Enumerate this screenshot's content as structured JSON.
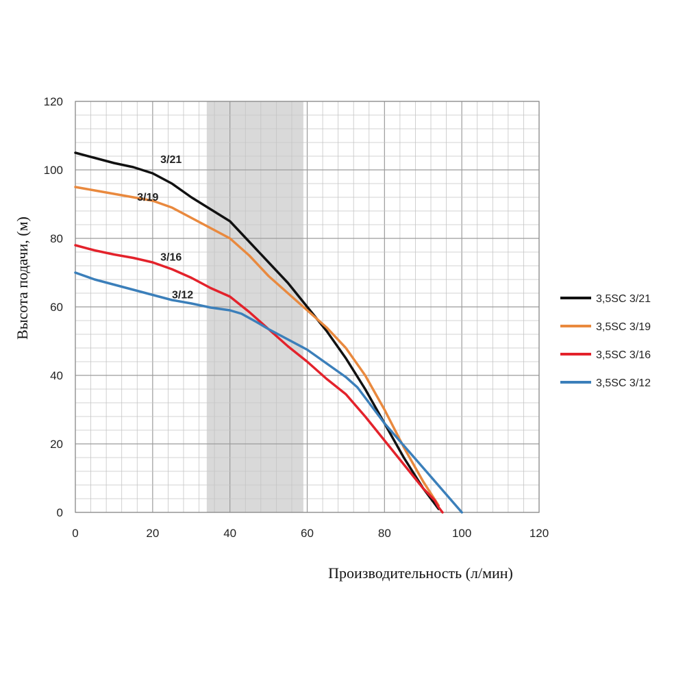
{
  "chart_data": {
    "type": "line",
    "xlabel": "Производительность (л/мин)",
    "ylabel": "Высота подачи, (м)",
    "xlim": [
      0,
      120
    ],
    "ylim": [
      0,
      120
    ],
    "x_ticks": [
      0,
      20,
      40,
      60,
      80,
      100,
      120
    ],
    "y_ticks": [
      0,
      20,
      40,
      60,
      80,
      100,
      120
    ],
    "grid": true,
    "legend_position": "right",
    "highlight_band": {
      "x_from": 34,
      "x_to": 59,
      "color": "#d9d9d9"
    },
    "series": [
      {
        "name": "3,5SC 3/21",
        "curve_label": "3/21",
        "label_at": [
          22,
          102
        ],
        "color": "#111111",
        "points": [
          [
            0,
            105
          ],
          [
            5,
            103.5
          ],
          [
            10,
            102
          ],
          [
            15,
            100.8
          ],
          [
            20,
            99
          ],
          [
            25,
            96
          ],
          [
            30,
            92
          ],
          [
            35,
            88.5
          ],
          [
            40,
            85
          ],
          [
            45,
            79
          ],
          [
            50,
            73
          ],
          [
            55,
            67
          ],
          [
            60,
            60
          ],
          [
            65,
            53
          ],
          [
            70,
            45
          ],
          [
            75,
            36
          ],
          [
            80,
            26
          ],
          [
            85,
            16
          ],
          [
            90,
            7
          ],
          [
            94,
            1
          ]
        ]
      },
      {
        "name": "3,5SC 3/19",
        "curve_label": "3/19",
        "label_at": [
          16,
          91
        ],
        "color": "#e9893e",
        "points": [
          [
            0,
            95
          ],
          [
            5,
            94
          ],
          [
            10,
            93
          ],
          [
            15,
            92
          ],
          [
            20,
            91
          ],
          [
            25,
            89
          ],
          [
            30,
            86
          ],
          [
            35,
            83
          ],
          [
            40,
            80
          ],
          [
            45,
            75
          ],
          [
            50,
            69
          ],
          [
            55,
            64
          ],
          [
            60,
            59
          ],
          [
            65,
            54
          ],
          [
            70,
            48
          ],
          [
            75,
            40
          ],
          [
            80,
            30
          ],
          [
            85,
            19
          ],
          [
            90,
            9
          ],
          [
            94,
            2
          ]
        ]
      },
      {
        "name": "3,5SC 3/16",
        "curve_label": "3/16",
        "label_at": [
          22,
          73.5
        ],
        "color": "#e3222b",
        "points": [
          [
            0,
            78
          ],
          [
            5,
            76.5
          ],
          [
            10,
            75.3
          ],
          [
            15,
            74.3
          ],
          [
            20,
            73
          ],
          [
            25,
            71
          ],
          [
            30,
            68.5
          ],
          [
            35,
            65.5
          ],
          [
            40,
            63
          ],
          [
            45,
            58.5
          ],
          [
            50,
            53.5
          ],
          [
            55,
            48.5
          ],
          [
            60,
            44
          ],
          [
            65,
            39
          ],
          [
            70,
            34.5
          ],
          [
            75,
            28
          ],
          [
            80,
            21
          ],
          [
            85,
            14
          ],
          [
            90,
            7
          ],
          [
            93,
            3.5
          ],
          [
            94,
            1.5
          ],
          [
            95,
            0
          ]
        ]
      },
      {
        "name": "3,5SC 3/12",
        "curve_label": "3/12",
        "label_at": [
          25,
          62.5
        ],
        "color": "#3b7fba",
        "points": [
          [
            0,
            70
          ],
          [
            5,
            68
          ],
          [
            10,
            66.5
          ],
          [
            15,
            65
          ],
          [
            20,
            63.5
          ],
          [
            25,
            62
          ],
          [
            30,
            61
          ],
          [
            35,
            59.8
          ],
          [
            40,
            59
          ],
          [
            43,
            58
          ],
          [
            47,
            55.5
          ],
          [
            50,
            53.5
          ],
          [
            55,
            50.5
          ],
          [
            60,
            47.5
          ],
          [
            65,
            43.5
          ],
          [
            70,
            39.5
          ],
          [
            73,
            36.5
          ],
          [
            75,
            33.5
          ],
          [
            80,
            26
          ],
          [
            85,
            19.5
          ],
          [
            90,
            13
          ],
          [
            95,
            6.5
          ],
          [
            100,
            0
          ]
        ]
      }
    ]
  }
}
